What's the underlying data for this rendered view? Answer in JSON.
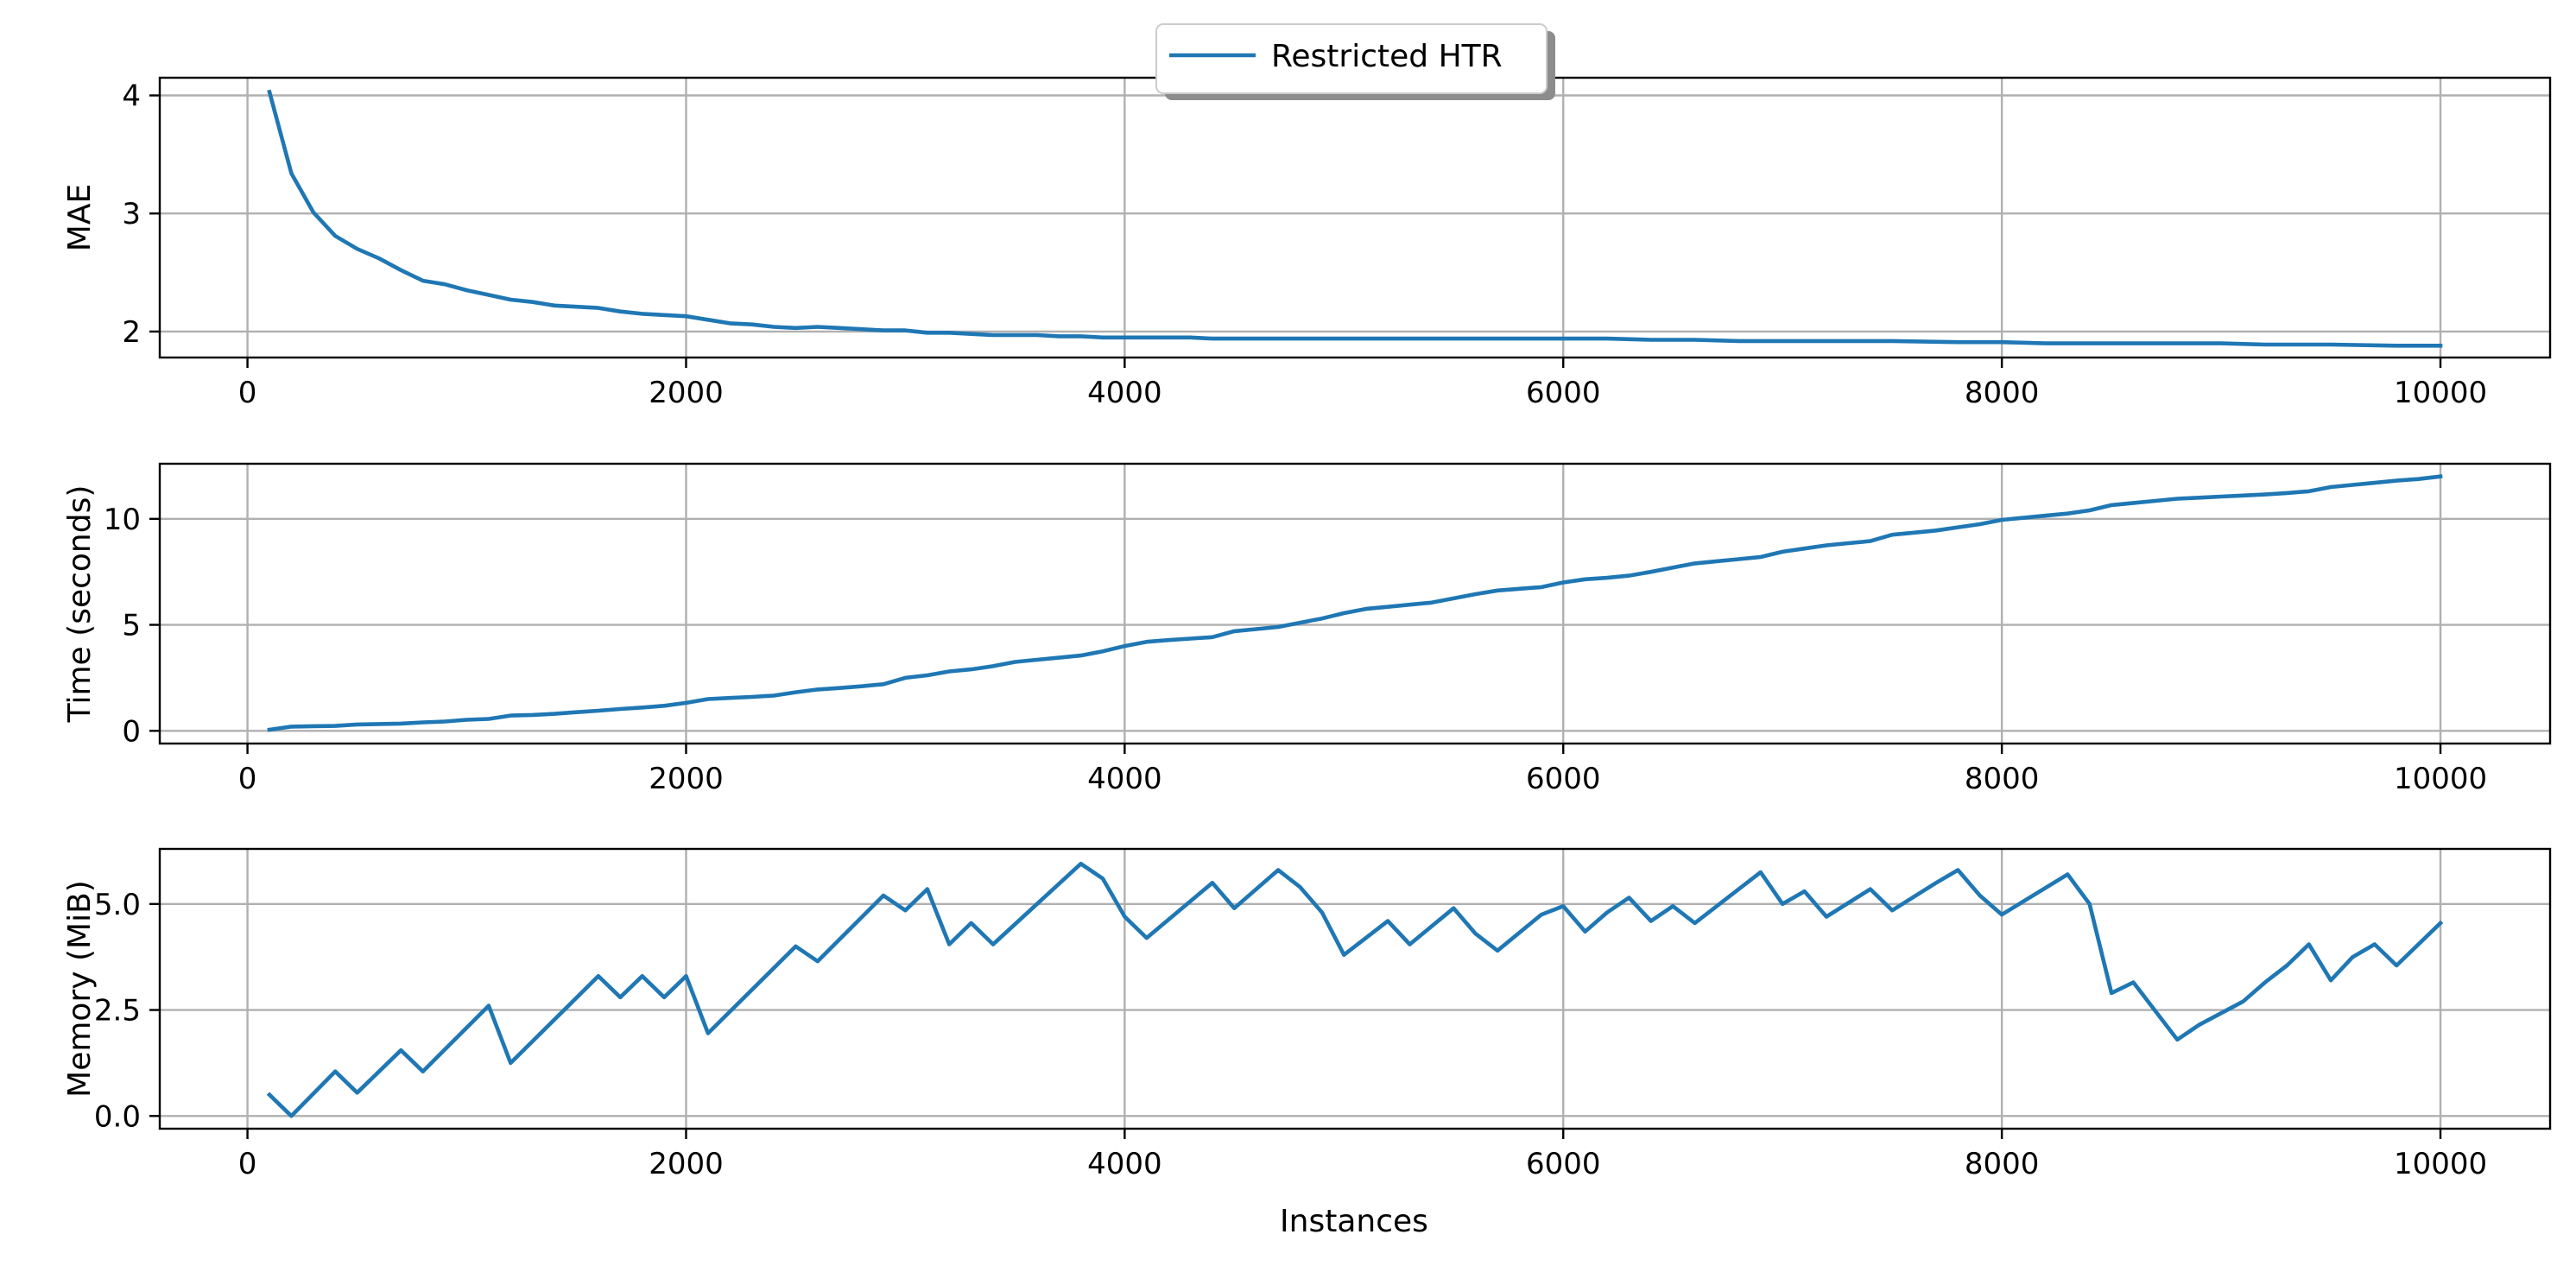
{
  "chart_data": {
    "type": "line",
    "legend": {
      "entries": [
        "Restricted HTR"
      ],
      "placement": "top-center",
      "color": "#1f77b4"
    },
    "xlabel": "Instances",
    "x_ticks": [
      "0",
      "2000",
      "4000",
      "6000",
      "8000",
      "10000"
    ],
    "x_tick_values": [
      0,
      2000,
      4000,
      6000,
      8000,
      10000
    ],
    "xlim": [
      -400,
      10500
    ],
    "grid": true,
    "panels": [
      {
        "ylabel": "MAE",
        "ylim": [
          1.78,
          4.15
        ],
        "y_ticks": [
          "2",
          "3",
          "4"
        ],
        "y_tick_values": [
          2,
          3,
          4
        ],
        "series": [
          {
            "name": "Restricted HTR",
            "x": [
              100,
              200,
              300,
              400,
              500,
              600,
              700,
              800,
              900,
              1000,
              1100,
              1200,
              1300,
              1400,
              1500,
              1600,
              1700,
              1800,
              1900,
              2000,
              2100,
              2200,
              2300,
              2400,
              2500,
              2600,
              2700,
              2800,
              2900,
              3000,
              3100,
              3200,
              3300,
              3400,
              3500,
              3600,
              3700,
              3800,
              3900,
              4000,
              4100,
              4200,
              4300,
              4400,
              4500,
              4600,
              4700,
              4800,
              4900,
              5000,
              5100,
              5200,
              5300,
              5400,
              5500,
              5600,
              5700,
              5800,
              5900,
              6000,
              6200,
              6400,
              6600,
              6800,
              7000,
              7200,
              7500,
              7800,
              8000,
              8200,
              8500,
              8800,
              9000,
              9200,
              9500,
              9800,
              10000
            ],
            "y": [
              4.03,
              3.34,
              3.01,
              2.81,
              2.7,
              2.62,
              2.52,
              2.43,
              2.4,
              2.35,
              2.31,
              2.27,
              2.25,
              2.22,
              2.21,
              2.2,
              2.17,
              2.15,
              2.14,
              2.13,
              2.1,
              2.07,
              2.06,
              2.04,
              2.03,
              2.04,
              2.03,
              2.02,
              2.01,
              2.01,
              1.99,
              1.99,
              1.98,
              1.97,
              1.97,
              1.97,
              1.96,
              1.96,
              1.95,
              1.95,
              1.95,
              1.95,
              1.95,
              1.94,
              1.94,
              1.94,
              1.94,
              1.94,
              1.94,
              1.94,
              1.94,
              1.94,
              1.94,
              1.94,
              1.94,
              1.94,
              1.94,
              1.94,
              1.94,
              1.94,
              1.94,
              1.93,
              1.93,
              1.92,
              1.92,
              1.92,
              1.92,
              1.91,
              1.91,
              1.9,
              1.9,
              1.9,
              1.9,
              1.89,
              1.89,
              1.88,
              1.88
            ]
          }
        ]
      },
      {
        "ylabel": "Time (seconds)",
        "ylim": [
          -0.6,
          12.6
        ],
        "y_ticks": [
          "0",
          "5",
          "10"
        ],
        "y_tick_values": [
          0,
          5,
          10
        ],
        "series": [
          {
            "name": "Restricted HTR",
            "x": [
              100,
              200,
              300,
              400,
              500,
              600,
              700,
              800,
              900,
              1000,
              1100,
              1200,
              1300,
              1400,
              1500,
              1600,
              1700,
              1800,
              1900,
              2000,
              2100,
              2200,
              2300,
              2400,
              2500,
              2600,
              2700,
              2800,
              2900,
              3000,
              3100,
              3200,
              3300,
              3400,
              3500,
              3600,
              3700,
              3800,
              3900,
              4000,
              4100,
              4200,
              4300,
              4400,
              4500,
              4600,
              4700,
              4800,
              4900,
              5000,
              5100,
              5200,
              5300,
              5400,
              5500,
              5600,
              5700,
              5800,
              5900,
              6000,
              6100,
              6200,
              6300,
              6400,
              6500,
              6600,
              6700,
              6800,
              6900,
              7000,
              7100,
              7200,
              7300,
              7400,
              7500,
              7600,
              7700,
              7800,
              7900,
              8000,
              8100,
              8200,
              8300,
              8400,
              8500,
              8600,
              8700,
              8800,
              8900,
              9000,
              9100,
              9200,
              9300,
              9400,
              9500,
              9600,
              9700,
              9800,
              9900,
              10000
            ],
            "y": [
              0.05,
              0.2,
              0.22,
              0.23,
              0.3,
              0.32,
              0.34,
              0.4,
              0.44,
              0.52,
              0.56,
              0.72,
              0.75,
              0.8,
              0.88,
              0.95,
              1.03,
              1.1,
              1.18,
              1.32,
              1.5,
              1.55,
              1.6,
              1.66,
              1.82,
              1.95,
              2.02,
              2.1,
              2.2,
              2.5,
              2.62,
              2.8,
              2.9,
              3.05,
              3.25,
              3.35,
              3.45,
              3.55,
              3.75,
              4.0,
              4.2,
              4.28,
              4.35,
              4.42,
              4.7,
              4.8,
              4.9,
              5.1,
              5.3,
              5.55,
              5.75,
              5.85,
              5.95,
              6.05,
              6.25,
              6.45,
              6.62,
              6.7,
              6.78,
              7.0,
              7.15,
              7.22,
              7.32,
              7.5,
              7.7,
              7.9,
              8.0,
              8.1,
              8.2,
              8.45,
              8.6,
              8.75,
              8.85,
              8.95,
              9.25,
              9.35,
              9.45,
              9.6,
              9.75,
              9.95,
              10.05,
              10.15,
              10.25,
              10.4,
              10.65,
              10.75,
              10.85,
              10.95,
              11.0,
              11.05,
              11.1,
              11.15,
              11.22,
              11.3,
              11.5,
              11.6,
              11.7,
              11.8,
              11.88,
              12.0
            ]
          }
        ]
      },
      {
        "ylabel": "Memory (MiB)",
        "ylim": [
          -0.3,
          6.3
        ],
        "y_ticks": [
          "0.0",
          "2.5",
          "5.0"
        ],
        "y_tick_values": [
          0.0,
          2.5,
          5.0
        ],
        "series": [
          {
            "name": "Restricted HTR",
            "x": [
              100,
              200,
              400,
              500,
              700,
              800,
              1100,
              1200,
              1600,
              1700,
              1800,
              1900,
              2000,
              2100,
              2500,
              2600,
              2900,
              3000,
              3100,
              3200,
              3300,
              3400,
              3800,
              3900,
              4000,
              4100,
              4400,
              4500,
              4700,
              4800,
              4900,
              5000,
              5200,
              5300,
              5500,
              5600,
              5700,
              5900,
              6000,
              6100,
              6200,
              6300,
              6400,
              6500,
              6600,
              6900,
              7000,
              7100,
              7200,
              7400,
              7500,
              7700,
              7800,
              7900,
              8000,
              8300,
              8400,
              8500,
              8600,
              8800,
              8900,
              9100,
              9200,
              9300,
              9400,
              9500,
              9600,
              9700,
              9800,
              10000
            ],
            "y": [
              0.5,
              0.0,
              1.05,
              0.55,
              1.55,
              1.05,
              2.6,
              1.25,
              3.3,
              2.8,
              3.3,
              2.8,
              3.3,
              1.95,
              4.0,
              3.65,
              5.2,
              4.85,
              5.35,
              4.05,
              4.55,
              4.05,
              5.95,
              5.6,
              4.7,
              4.2,
              5.5,
              4.9,
              5.8,
              5.4,
              4.8,
              3.8,
              4.6,
              4.05,
              4.9,
              4.3,
              3.9,
              4.75,
              4.95,
              4.35,
              4.8,
              5.15,
              4.6,
              4.95,
              4.55,
              5.75,
              5.0,
              5.3,
              4.7,
              5.35,
              4.85,
              5.5,
              5.8,
              5.2,
              4.75,
              5.7,
              5.0,
              2.9,
              3.15,
              1.8,
              2.15,
              2.7,
              3.15,
              3.55,
              4.05,
              3.2,
              3.75,
              4.05,
              3.55,
              4.55
            ]
          }
        ]
      }
    ]
  }
}
